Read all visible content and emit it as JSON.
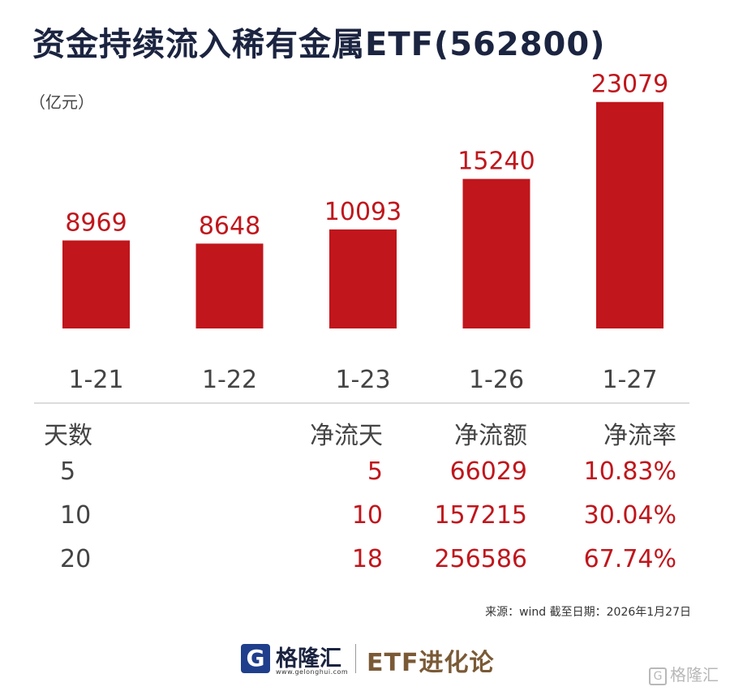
{
  "title": "资金持续流入稀有金属ETF(562800)",
  "unit_label": "（亿元）",
  "chart_data": {
    "type": "bar",
    "categories": [
      "1-21",
      "1-22",
      "1-23",
      "1-26",
      "1-27"
    ],
    "values": [
      8969,
      8648,
      10093,
      15240,
      23079
    ],
    "data_labels": [
      "8969",
      "8648",
      "10093",
      "15240",
      "23079"
    ],
    "title": "资金持续流入稀有金属ETF(562800)",
    "ylabel": "（亿元）",
    "ylim": [
      0,
      25000
    ],
    "grid": false,
    "bar_color": "#c0161c",
    "label_color": "#c0161c"
  },
  "table": {
    "headers": [
      "天数",
      "净流天",
      "净流额",
      "净流率"
    ],
    "rows": [
      [
        "5",
        "5",
        "66029",
        "10.83%"
      ],
      [
        "10",
        "10",
        "157215",
        "30.04%"
      ],
      [
        "20",
        "18",
        "256586",
        "67.74%"
      ]
    ]
  },
  "source": "来源：wind 截至日期：2026年1月27日",
  "footer": {
    "logo_letter": "G",
    "logo_name": "格隆汇",
    "logo_url": "www.gelonghui.com",
    "column_name": "ETF进化论",
    "watermark": "格隆汇",
    "watermark_icon": "gelonghui-logo-icon"
  },
  "colors": {
    "accent_red": "#c0161c",
    "title_navy": "#1b2440",
    "brand_brown": "#7a5a36"
  }
}
